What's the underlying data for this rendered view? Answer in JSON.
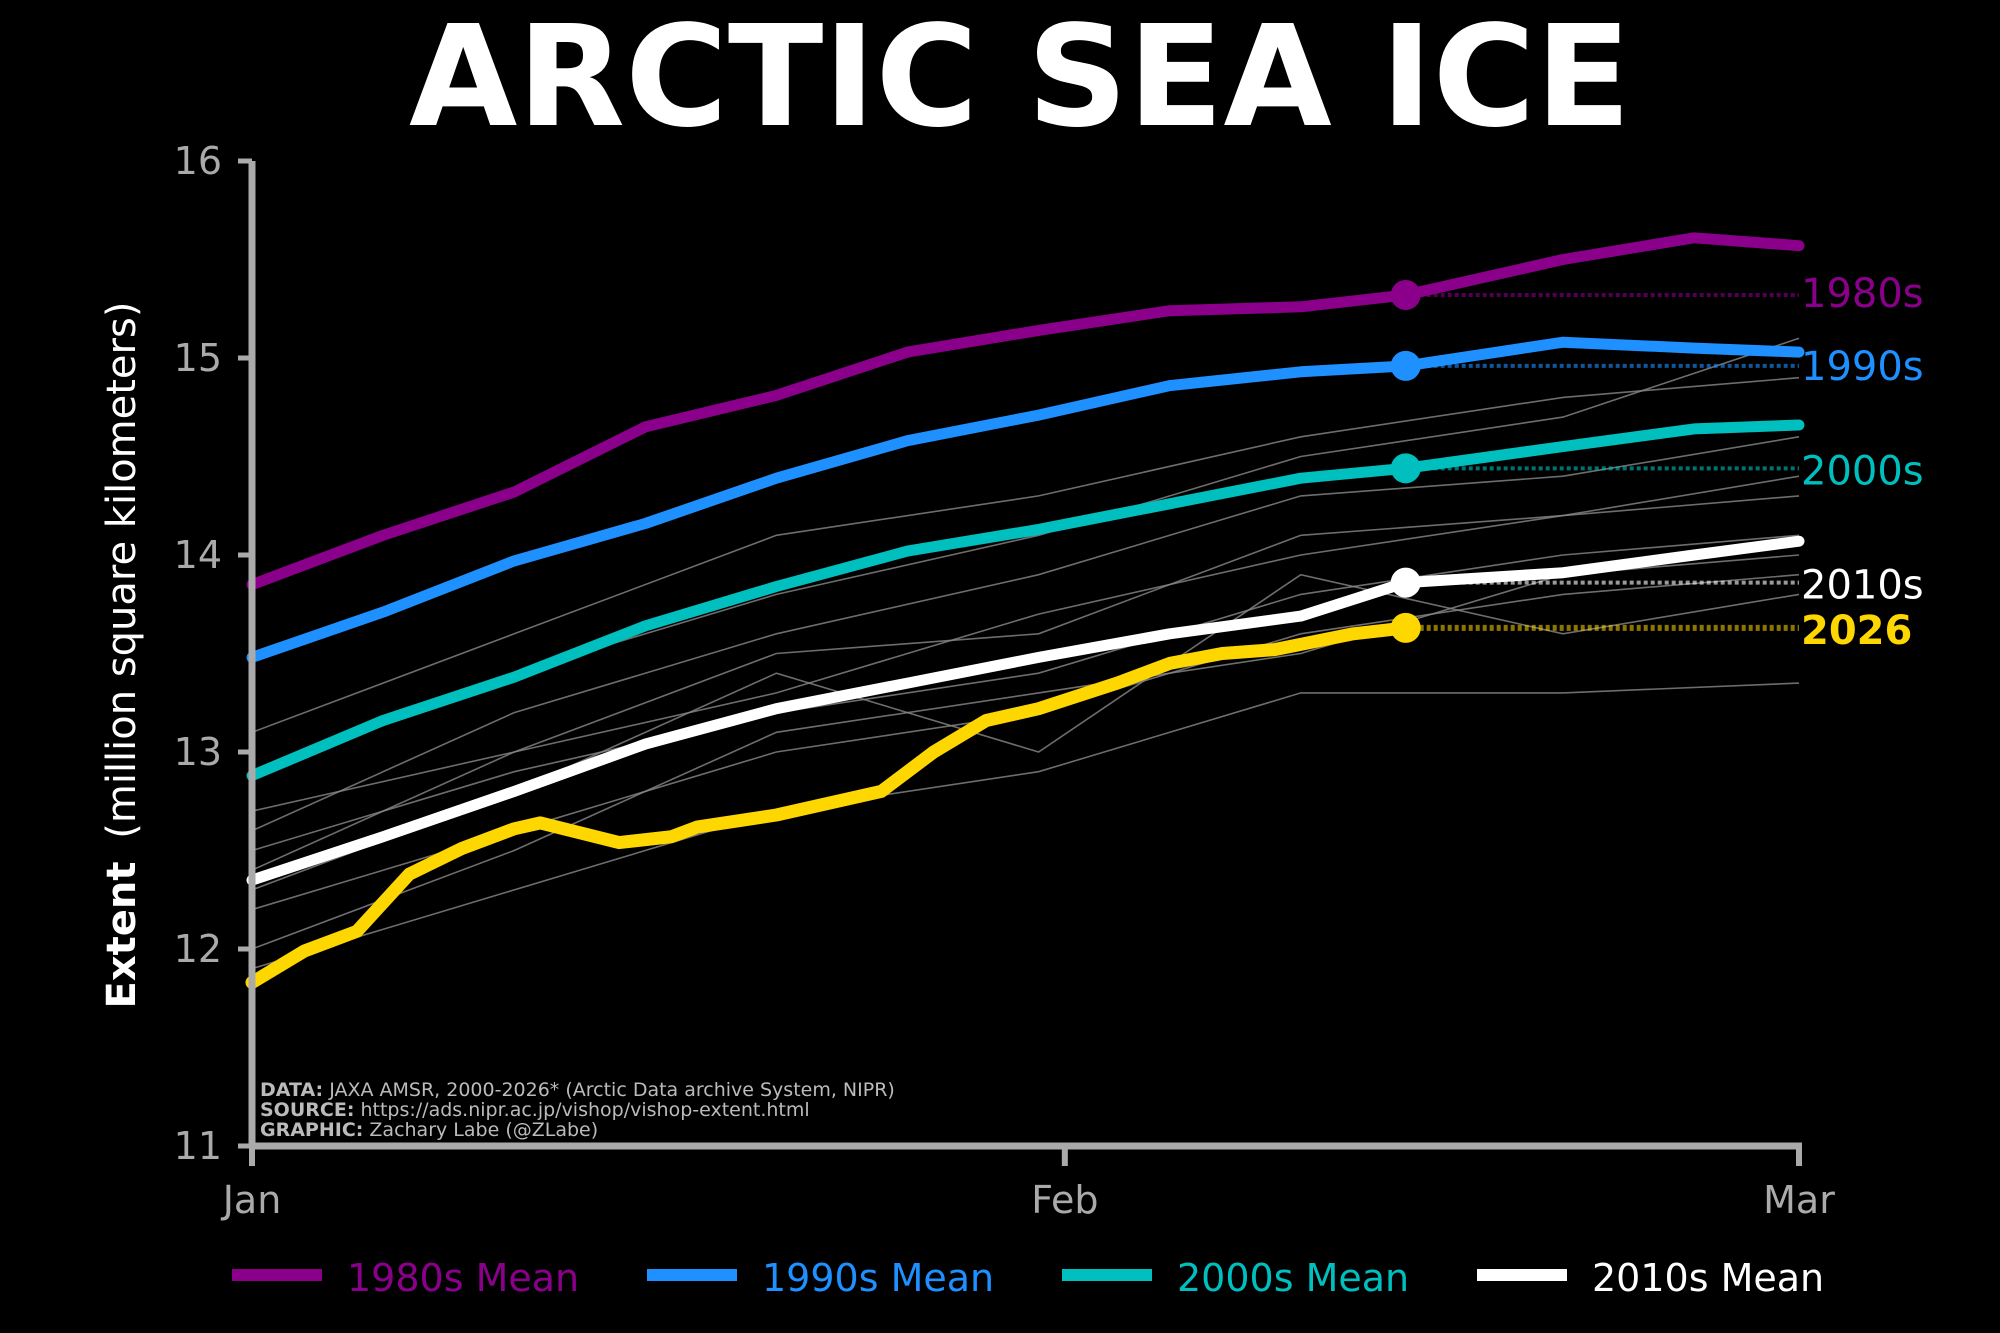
{
  "chart_data": {
    "type": "line",
    "title": "ARCTIC SEA ICE",
    "ylabel_bold": "Extent",
    "ylabel_rest": "(million square kilometers)",
    "ylim": [
      11,
      16
    ],
    "yticks": [
      "11",
      "12",
      "13",
      "14",
      "15",
      "16"
    ],
    "xlim_days": [
      0,
      59
    ],
    "xticks": [
      {
        "day": 0,
        "label": "Jan"
      },
      {
        "day": 31,
        "label": "Feb"
      },
      {
        "day": 59,
        "label": "Mar"
      }
    ],
    "grid": false,
    "legend_placement": "bottom",
    "marker_day": 44,
    "series": [
      {
        "name": "1980s Mean",
        "label": "1980s",
        "color": "#8B008B",
        "days": [
          0,
          5,
          10,
          15,
          20,
          25,
          30,
          35,
          40,
          44,
          50,
          55,
          59
        ],
        "values": [
          13.85,
          14.1,
          14.32,
          14.65,
          14.81,
          15.03,
          15.14,
          15.24,
          15.26,
          15.32,
          15.5,
          15.61,
          15.57
        ]
      },
      {
        "name": "1990s Mean",
        "label": "1990s",
        "color": "#1E90FF",
        "days": [
          0,
          5,
          10,
          15,
          20,
          25,
          30,
          35,
          40,
          44,
          50,
          55,
          59
        ],
        "values": [
          13.48,
          13.71,
          13.97,
          14.16,
          14.39,
          14.58,
          14.71,
          14.86,
          14.93,
          14.96,
          15.08,
          15.05,
          15.03
        ]
      },
      {
        "name": "2000s Mean",
        "label": "2000s",
        "color": "#00BFBF",
        "days": [
          0,
          5,
          10,
          15,
          20,
          25,
          30,
          35,
          40,
          44,
          50,
          55,
          59
        ],
        "values": [
          12.88,
          13.16,
          13.38,
          13.64,
          13.84,
          14.02,
          14.13,
          14.26,
          14.39,
          14.44,
          14.55,
          14.64,
          14.66
        ]
      },
      {
        "name": "2010s Mean",
        "label": "2010s",
        "color": "#FFFFFF",
        "days": [
          0,
          5,
          10,
          15,
          20,
          25,
          30,
          35,
          40,
          44,
          50,
          55,
          59
        ],
        "values": [
          12.35,
          12.57,
          12.8,
          13.04,
          13.22,
          13.35,
          13.48,
          13.6,
          13.69,
          13.86,
          13.91,
          14.0,
          14.07
        ]
      }
    ],
    "current": {
      "label": "2026",
      "color": "#FFD700",
      "days": [
        0,
        2,
        4,
        6,
        8,
        10,
        11,
        14,
        16,
        17,
        20,
        24,
        26,
        28,
        30,
        33,
        35,
        37,
        39,
        42,
        44
      ],
      "values": [
        11.83,
        11.99,
        12.09,
        12.38,
        12.51,
        12.61,
        12.64,
        12.54,
        12.57,
        12.62,
        12.68,
        12.8,
        13.0,
        13.16,
        13.22,
        13.35,
        13.45,
        13.5,
        13.52,
        13.6,
        13.63
      ]
    },
    "individual_years": {
      "color": "#888888",
      "days": [
        0,
        10,
        20,
        30,
        40,
        50,
        59
      ],
      "values": [
        [
          12.9,
          13.4,
          13.8,
          14.1,
          14.5,
          14.7,
          15.1
        ],
        [
          13.1,
          13.6,
          14.1,
          14.3,
          14.6,
          14.8,
          14.9
        ],
        [
          12.6,
          13.2,
          13.6,
          13.9,
          14.3,
          14.4,
          14.6
        ],
        [
          12.4,
          13.0,
          13.3,
          13.7,
          14.0,
          14.2,
          14.4
        ],
        [
          12.7,
          13.0,
          13.5,
          13.6,
          14.1,
          14.2,
          14.3
        ],
        [
          12.2,
          12.6,
          13.0,
          13.2,
          13.6,
          13.8,
          13.9
        ],
        [
          12.0,
          12.5,
          13.1,
          13.3,
          13.5,
          13.9,
          14.0
        ],
        [
          12.5,
          12.9,
          13.2,
          13.4,
          13.8,
          14.0,
          14.1
        ],
        [
          11.9,
          12.3,
          12.7,
          12.9,
          13.3,
          13.3,
          13.35
        ],
        [
          12.3,
          12.8,
          13.4,
          13.0,
          13.9,
          13.6,
          13.8
        ]
      ]
    }
  },
  "footer": {
    "data_label": "DATA:",
    "data_text": " JAXA AMSR, 2000-2026* (Arctic Data archive System, NIPR)",
    "source_label": "SOURCE:",
    "source_text": " https://ads.nipr.ac.jp/vishop/vishop-extent.html",
    "graphic_label": "GRAPHIC:",
    "graphic_text": " Zachary Labe (@ZLabe)"
  },
  "colors": {
    "background": "#000000",
    "axis": "#aaaaaa"
  }
}
